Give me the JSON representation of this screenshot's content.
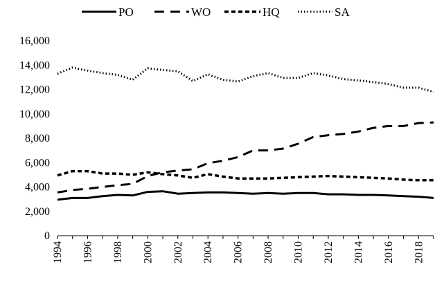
{
  "chart_data": {
    "type": "line",
    "title": "",
    "xlabel": "",
    "ylabel": "",
    "x": [
      1994,
      1995,
      1996,
      1997,
      1998,
      1999,
      2000,
      2001,
      2002,
      2003,
      2004,
      2005,
      2006,
      2007,
      2008,
      2009,
      2010,
      2011,
      2012,
      2013,
      2014,
      2015,
      2016,
      2017,
      2018,
      2019
    ],
    "xticks": [
      "1994",
      "1996",
      "1998",
      "2000",
      "2002",
      "2004",
      "2006",
      "2008",
      "2010",
      "2012",
      "2014",
      "2016",
      "2018"
    ],
    "ylim": [
      0,
      16000
    ],
    "yticks": [
      "0",
      "2,000",
      "4,000",
      "6,000",
      "8,000",
      "10,000",
      "12,000",
      "14,000",
      "16,000"
    ],
    "grid": false,
    "legend_position": "top",
    "series": [
      {
        "name": "PO",
        "style": "solid",
        "values": [
          2950,
          3100,
          3100,
          3250,
          3350,
          3300,
          3600,
          3650,
          3450,
          3500,
          3550,
          3550,
          3500,
          3450,
          3500,
          3450,
          3500,
          3500,
          3400,
          3400,
          3350,
          3350,
          3300,
          3250,
          3200,
          3100
        ]
      },
      {
        "name": "WO",
        "style": "long-dash",
        "values": [
          3550,
          3750,
          3850,
          4000,
          4150,
          4250,
          4900,
          5200,
          5350,
          5450,
          5950,
          6150,
          6450,
          7000,
          7000,
          7150,
          7550,
          8100,
          8250,
          8350,
          8550,
          8850,
          9000,
          9000,
          9250,
          9300
        ]
      },
      {
        "name": "HQ",
        "style": "short-dash",
        "values": [
          4950,
          5300,
          5300,
          5100,
          5100,
          5000,
          5200,
          5050,
          4950,
          4750,
          5050,
          4850,
          4700,
          4700,
          4700,
          4750,
          4800,
          4850,
          4900,
          4850,
          4800,
          4750,
          4700,
          4600,
          4550,
          4550
        ]
      },
      {
        "name": "SA",
        "style": "dotted",
        "values": [
          13300,
          13800,
          13550,
          13350,
          13200,
          12800,
          13750,
          13600,
          13500,
          12700,
          13250,
          12800,
          12650,
          13100,
          13350,
          12950,
          12950,
          13350,
          13150,
          12850,
          12750,
          12600,
          12450,
          12150,
          12150,
          11800
        ]
      }
    ]
  }
}
